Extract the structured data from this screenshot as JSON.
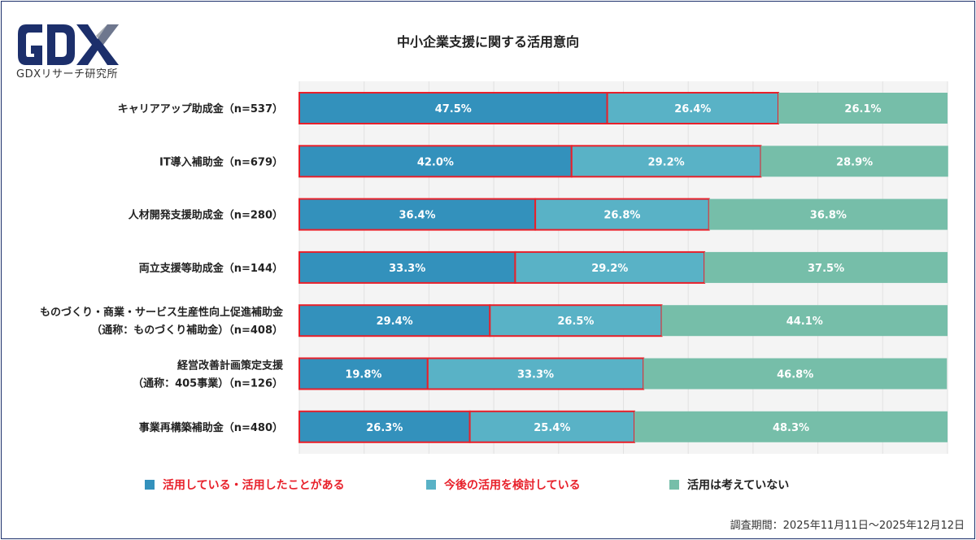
{
  "logo": {
    "text": "GDX",
    "subtitle": "GDXリサーチ研究所"
  },
  "chart_data": {
    "type": "bar",
    "orientation": "horizontal-stacked-100",
    "title": "中小企業支援に関する活用意向",
    "categories": [
      [
        "キャリアアップ助成金（n=537）"
      ],
      [
        "IT導入補助金（n=679）"
      ],
      [
        "人材開発支援助成金（n=280）"
      ],
      [
        "両立支援等助成金（n=144）"
      ],
      [
        "ものづくり・商業・サービス生産性向上促進補助金",
        "（通称：ものづくり補助金）（n=408）"
      ],
      [
        "経営改善計画策定支援",
        "（通称：405事業）（n=126）"
      ],
      [
        "事業再構築補助金（n=480）"
      ]
    ],
    "series": [
      {
        "name": "活用している・活用したことがある",
        "color": "#3391bc",
        "label_color": "#e8202a",
        "values": [
          47.5,
          42.0,
          36.4,
          33.3,
          29.4,
          19.8,
          26.3
        ],
        "labels": [
          "47.5%",
          "42.0%",
          "36.4%",
          "33.3%",
          "29.4%",
          "19.8%",
          "26.3%"
        ]
      },
      {
        "name": "今後の活用を検討している",
        "color": "#59b2c6",
        "label_color": "#e8202a",
        "values": [
          26.4,
          29.2,
          26.8,
          29.2,
          26.5,
          33.3,
          25.4
        ],
        "labels": [
          "26.4%",
          "29.2%",
          "26.8%",
          "29.2%",
          "26.5%",
          "33.3%",
          "25.4%"
        ]
      },
      {
        "name": "活用は考えていない",
        "color": "#76bea9",
        "label_color": "#222222",
        "values": [
          26.1,
          28.9,
          36.8,
          37.5,
          44.1,
          46.8,
          48.3
        ],
        "labels": [
          "26.1%",
          "28.9%",
          "36.8%",
          "37.5%",
          "44.1%",
          "46.8%",
          "48.3%"
        ]
      }
    ],
    "highlight_color": "#e8202a",
    "xlim": [
      0,
      100
    ],
    "grid": true,
    "legend_position": "bottom"
  },
  "footer": {
    "period": "調査期間：2025年11月11日〜2025年12月12日"
  }
}
